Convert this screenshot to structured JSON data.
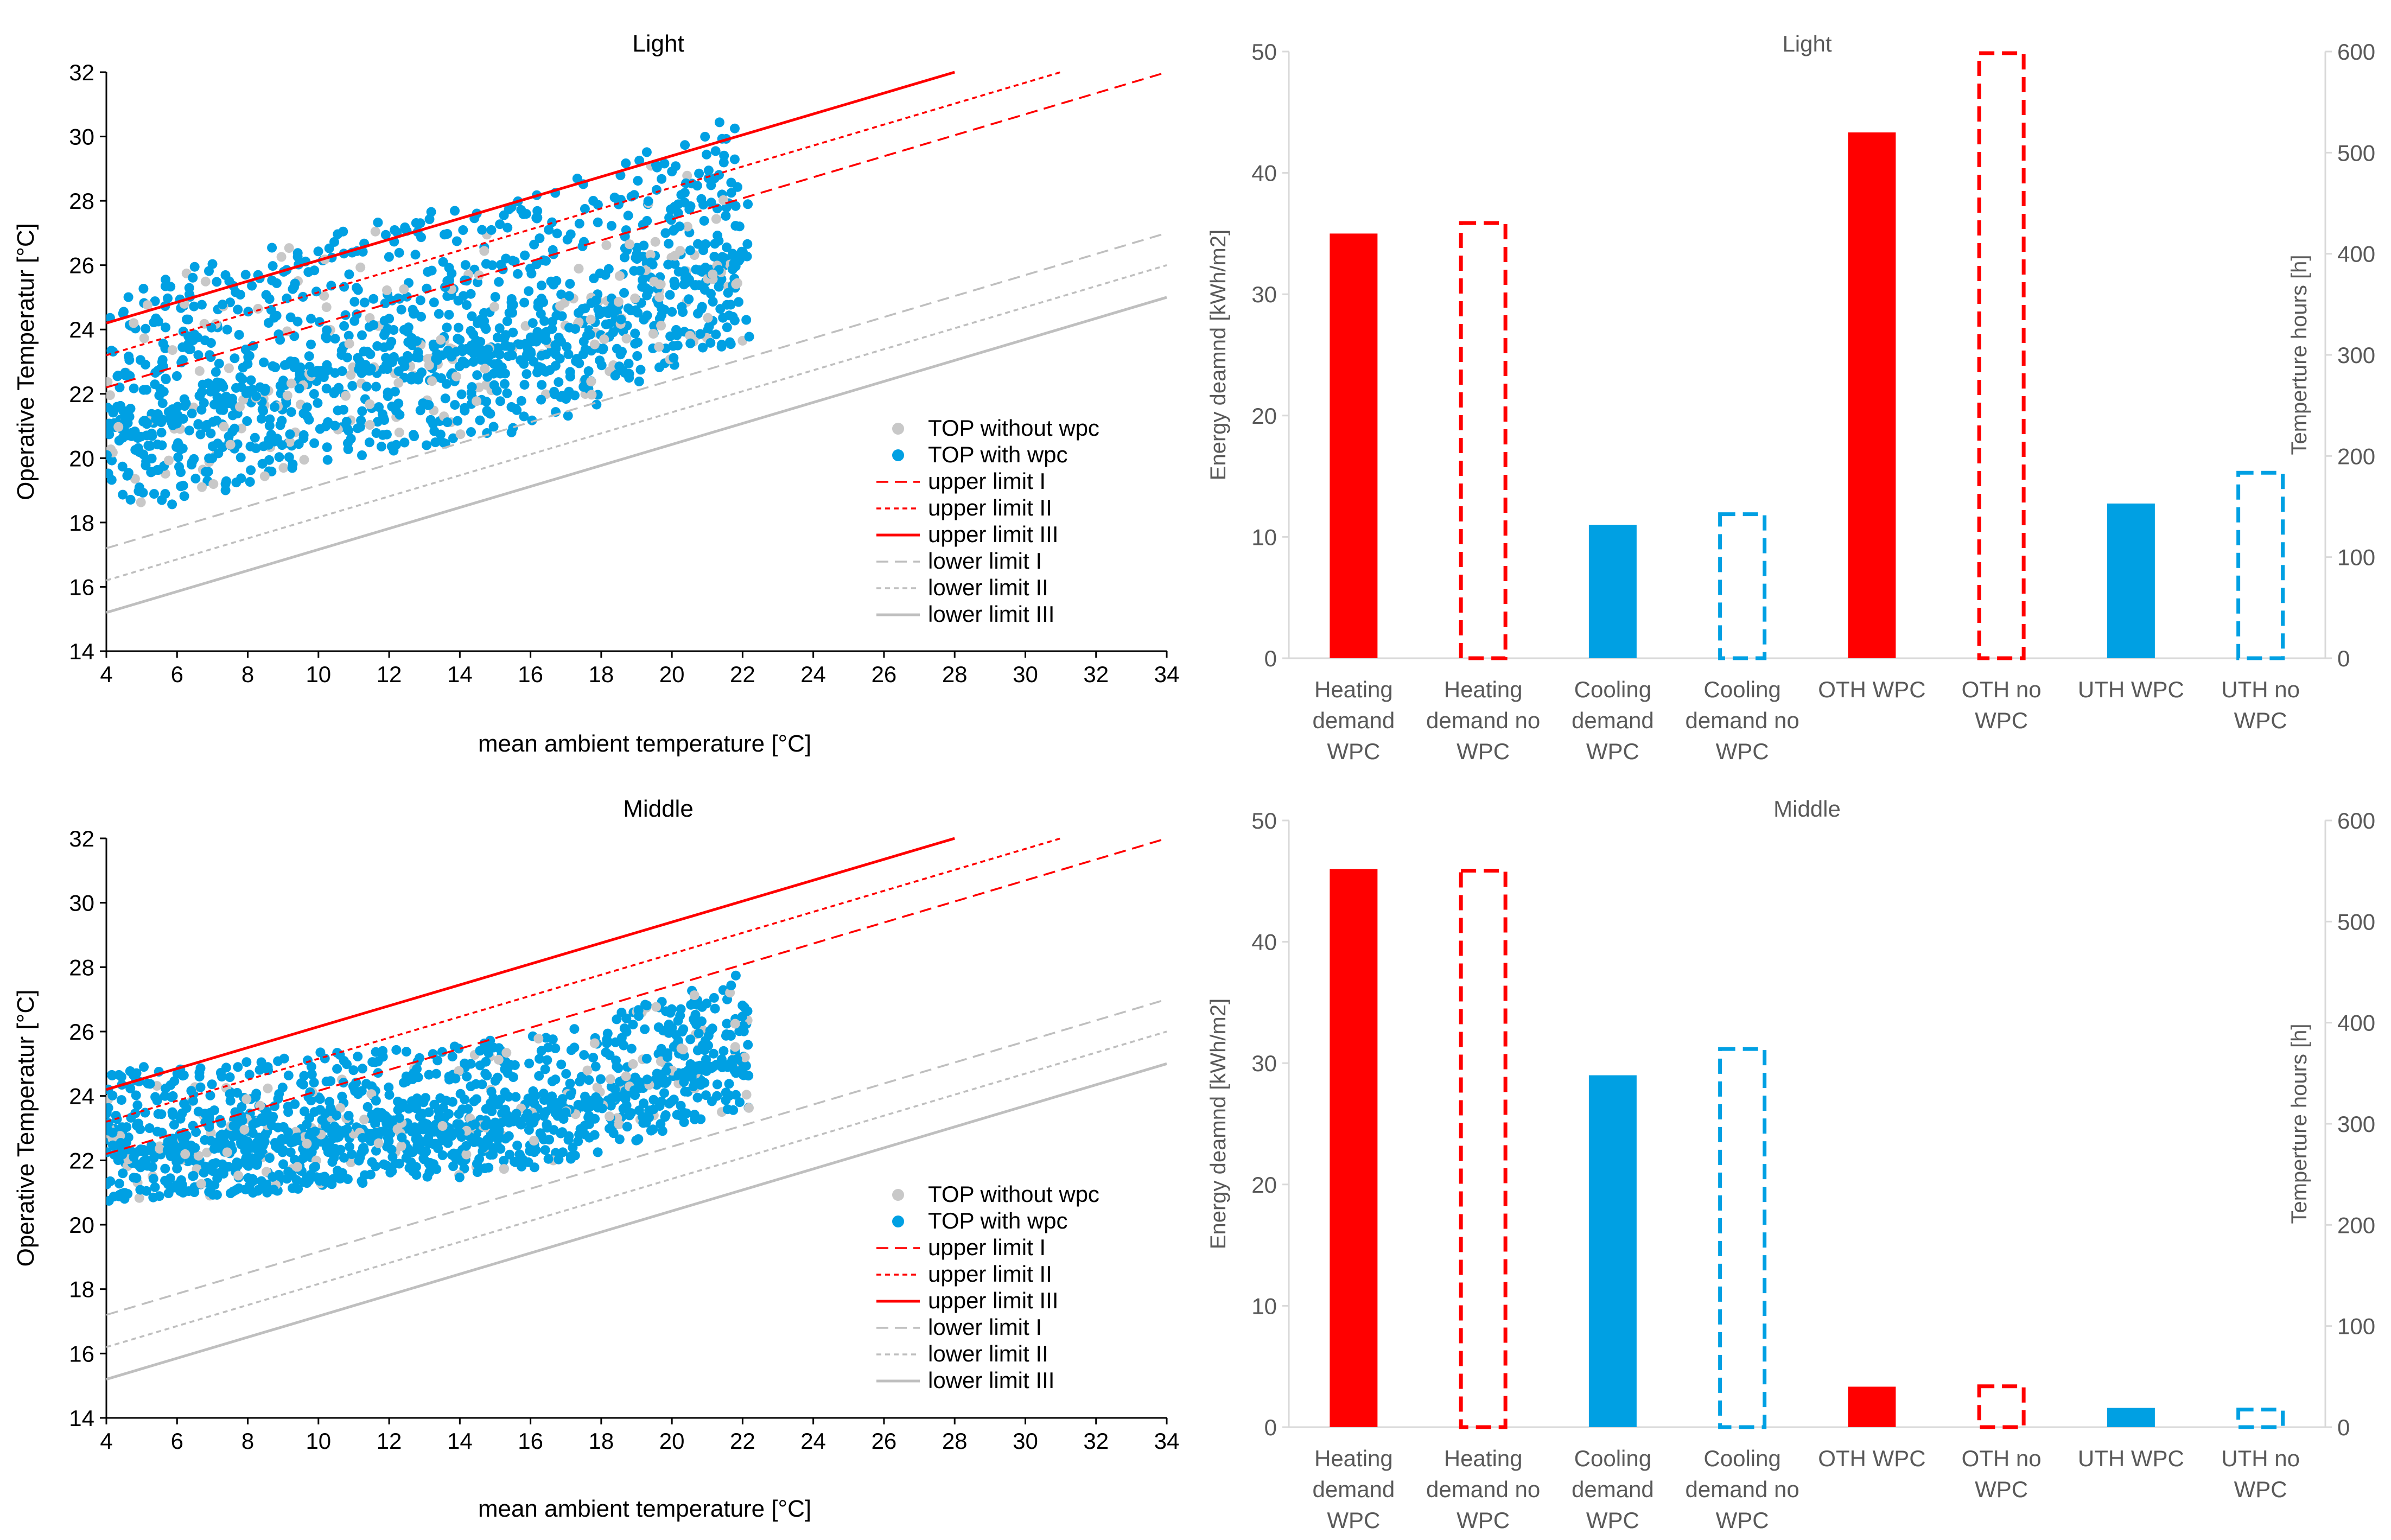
{
  "colors": {
    "red": "#ff0000",
    "blue": "#00a0e3",
    "grey_point": "#c8c8c8",
    "grey_line": "#bfbfbf",
    "axis_dark": "#000000",
    "axis_light": "#d9d9d9",
    "text_grey": "#595959"
  },
  "chart_data": [
    {
      "id": "scatter-light",
      "type": "scatter",
      "title": "Light",
      "xlabel": "mean ambient temperature [°C]",
      "ylabel": "Operative Temperatur [°C]",
      "xlim": [
        4,
        34
      ],
      "ylim": [
        14,
        32
      ],
      "xticks": [
        "4",
        "6",
        "8",
        "10",
        "12",
        "14",
        "16",
        "18",
        "20",
        "22",
        "24",
        "26",
        "28",
        "30",
        "32",
        "34"
      ],
      "yticks": [
        "14",
        "16",
        "18",
        "20",
        "22",
        "24",
        "26",
        "28",
        "30",
        "32"
      ],
      "legend": {
        "position": "bottom-right",
        "entries": [
          "TOP without wpc",
          "TOP with wpc",
          "upper limit  I",
          "upper limit  II",
          "upper limit  III",
          "lower limit I",
          "lower limit II",
          "lower limit III"
        ]
      },
      "lines": [
        {
          "name": "upper limit  I",
          "style": "dashed",
          "color": "red",
          "points": [
            [
              4,
              22.2
            ],
            [
              34,
              32.0
            ]
          ]
        },
        {
          "name": "upper limit  II",
          "style": "dotted",
          "color": "red",
          "points": [
            [
              4,
              23.2
            ],
            [
              31,
              32.0
            ]
          ]
        },
        {
          "name": "upper limit  III",
          "style": "solid",
          "color": "red",
          "points": [
            [
              4,
              24.2
            ],
            [
              28,
              32.0
            ]
          ]
        },
        {
          "name": "lower limit I",
          "style": "dashed",
          "color": "grey",
          "points": [
            [
              4,
              17.2
            ],
            [
              34,
              27.0
            ]
          ]
        },
        {
          "name": "lower limit II",
          "style": "dotted",
          "color": "grey",
          "points": [
            [
              4,
              16.2
            ],
            [
              34,
              26.0
            ]
          ]
        },
        {
          "name": "lower limit III",
          "style": "solid",
          "color": "grey",
          "points": [
            [
              4,
              15.2
            ],
            [
              34,
              25.0
            ]
          ]
        }
      ],
      "series_summary": {
        "x_range": [
          4.0,
          22.2
        ],
        "base": [
          [
            4,
            21.0
          ],
          [
            6,
            21.3
          ],
          [
            8,
            22.0
          ],
          [
            10,
            22.7
          ],
          [
            12,
            23.0
          ],
          [
            14,
            23.3
          ],
          [
            16,
            23.6
          ],
          [
            18,
            24.5
          ],
          [
            20,
            25.5
          ],
          [
            22,
            26.3
          ]
        ],
        "low_spread": 2.8,
        "high_spread": 4.5,
        "approx_points": 1400
      }
    },
    {
      "id": "bar-light",
      "type": "bar",
      "title": "Light",
      "ylabel": "Energy deamnd [kWh/m2]",
      "y2label": "Temperture hours [h]",
      "ylim": [
        0,
        50
      ],
      "y2lim": [
        0,
        600
      ],
      "yticks": [
        "0",
        "10",
        "20",
        "30",
        "40",
        "50"
      ],
      "y2ticks": [
        "0",
        "100",
        "200",
        "300",
        "400",
        "500",
        "600"
      ],
      "categories": [
        [
          "Heating",
          "demand",
          "WPC"
        ],
        [
          "Heating",
          "demand no",
          "WPC"
        ],
        [
          "Cooling",
          "demand",
          "WPC"
        ],
        [
          "Cooling",
          "demand no",
          "WPC"
        ],
        [
          "OTH WPC"
        ],
        [
          "OTH no",
          "WPC"
        ],
        [
          "UTH WPC"
        ],
        [
          "UTH no",
          "WPC"
        ]
      ],
      "bars": [
        {
          "value": 35,
          "axis": "left",
          "color": "red",
          "fill": "solid"
        },
        {
          "value": 36,
          "axis": "left",
          "color": "red",
          "fill": "dashed-outline"
        },
        {
          "value": 11,
          "axis": "left",
          "color": "blue",
          "fill": "solid"
        },
        {
          "value": 12,
          "axis": "left",
          "color": "blue",
          "fill": "dashed-outline"
        },
        {
          "value": 520,
          "axis": "right",
          "color": "red",
          "fill": "solid"
        },
        {
          "value": 600,
          "axis": "right",
          "color": "red",
          "fill": "dashed-outline"
        },
        {
          "value": 153,
          "axis": "right",
          "color": "blue",
          "fill": "solid"
        },
        {
          "value": 185,
          "axis": "right",
          "color": "blue",
          "fill": "dashed-outline"
        }
      ]
    },
    {
      "id": "scatter-middle",
      "type": "scatter",
      "title": "Middle",
      "xlabel": "mean ambient temperature [°C]",
      "ylabel": "Operative Temperatur [°C]",
      "xlim": [
        4,
        34
      ],
      "ylim": [
        14,
        32
      ],
      "xticks": [
        "4",
        "6",
        "8",
        "10",
        "12",
        "14",
        "16",
        "18",
        "20",
        "22",
        "24",
        "26",
        "28",
        "30",
        "32",
        "34"
      ],
      "yticks": [
        "14",
        "16",
        "18",
        "20",
        "22",
        "24",
        "26",
        "28",
        "30",
        "32"
      ],
      "legend": {
        "position": "bottom-right",
        "entries": [
          "TOP without wpc",
          "TOP with wpc",
          "upper limit  I",
          "upper limit  II",
          "upper limit  III",
          "lower limit I",
          "lower limit II",
          "lower limit III"
        ]
      },
      "lines": [
        {
          "name": "upper limit  I",
          "style": "dashed",
          "color": "red",
          "points": [
            [
              4,
              22.2
            ],
            [
              34,
              32.0
            ]
          ]
        },
        {
          "name": "upper limit  II",
          "style": "dotted",
          "color": "red",
          "points": [
            [
              4,
              23.2
            ],
            [
              31,
              32.0
            ]
          ]
        },
        {
          "name": "upper limit  III",
          "style": "solid",
          "color": "red",
          "points": [
            [
              4,
              24.2
            ],
            [
              28,
              32.0
            ]
          ]
        },
        {
          "name": "lower limit I",
          "style": "dashed",
          "color": "grey",
          "points": [
            [
              4,
              17.2
            ],
            [
              34,
              27.0
            ]
          ]
        },
        {
          "name": "lower limit II",
          "style": "dotted",
          "color": "grey",
          "points": [
            [
              4,
              16.2
            ],
            [
              34,
              26.0
            ]
          ]
        },
        {
          "name": "lower limit III",
          "style": "solid",
          "color": "grey",
          "points": [
            [
              4,
              15.2
            ],
            [
              34,
              25.0
            ]
          ]
        }
      ],
      "series_summary": {
        "x_range": [
          4.0,
          22.2
        ],
        "base": [
          [
            4,
            22.3
          ],
          [
            6,
            22.4
          ],
          [
            8,
            22.5
          ],
          [
            10,
            22.8
          ],
          [
            12,
            22.9
          ],
          [
            14,
            23.0
          ],
          [
            16,
            23.3
          ],
          [
            18,
            23.8
          ],
          [
            20,
            24.6
          ],
          [
            22,
            25.2
          ]
        ],
        "low_spread": 1.6,
        "high_spread": 2.6,
        "approx_points": 1400
      }
    },
    {
      "id": "bar-middle",
      "type": "bar",
      "title": "Middle",
      "ylabel": "Energy deamnd [kWh/m2]",
      "y2label": "Temperture hours [h]",
      "ylim": [
        0,
        50
      ],
      "y2lim": [
        0,
        600
      ],
      "yticks": [
        "0",
        "10",
        "20",
        "30",
        "40",
        "50"
      ],
      "y2ticks": [
        "0",
        "100",
        "200",
        "300",
        "400",
        "500",
        "600"
      ],
      "categories": [
        [
          "Heating",
          "demand",
          "WPC"
        ],
        [
          "Heating",
          "demand no",
          "WPC"
        ],
        [
          "Cooling",
          "demand",
          "WPC"
        ],
        [
          "Cooling",
          "demand no",
          "WPC"
        ],
        [
          "OTH WPC"
        ],
        [
          "OTH no",
          "WPC"
        ],
        [
          "UTH WPC"
        ],
        [
          "UTH no",
          "WPC"
        ]
      ],
      "bars": [
        {
          "value": 46,
          "axis": "left",
          "color": "red",
          "fill": "solid"
        },
        {
          "value": 46,
          "axis": "left",
          "color": "red",
          "fill": "dashed-outline"
        },
        {
          "value": 29,
          "axis": "left",
          "color": "blue",
          "fill": "solid"
        },
        {
          "value": 31.3,
          "axis": "left",
          "color": "blue",
          "fill": "dashed-outline"
        },
        {
          "value": 40,
          "axis": "right",
          "color": "red",
          "fill": "solid"
        },
        {
          "value": 42,
          "axis": "right",
          "color": "red",
          "fill": "dashed-outline"
        },
        {
          "value": 19,
          "axis": "right",
          "color": "blue",
          "fill": "solid"
        },
        {
          "value": 19,
          "axis": "right",
          "color": "blue",
          "fill": "dashed-outline"
        }
      ]
    }
  ]
}
